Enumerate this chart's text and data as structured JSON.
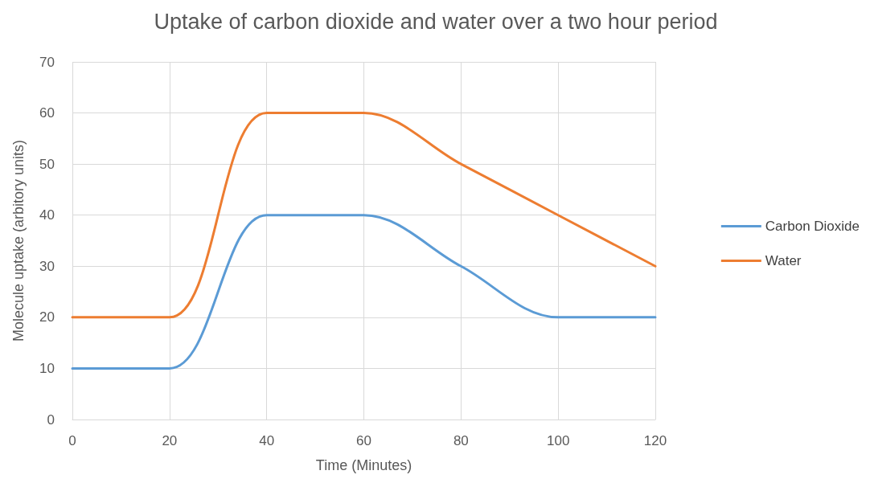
{
  "chart_data": {
    "type": "line",
    "title": "Uptake of carbon dioxide and water over a two hour period",
    "xlabel": "Time (Minutes)",
    "ylabel": "Molecule uptake (arbitory units)",
    "x": [
      0,
      20,
      40,
      60,
      80,
      100,
      120
    ],
    "series": [
      {
        "name": "Carbon Dioxide",
        "color": "#5b9bd5",
        "values": [
          10,
          10,
          40,
          40,
          30,
          20,
          20
        ]
      },
      {
        "name": "Water",
        "color": "#ed7d31",
        "values": [
          20,
          20,
          60,
          60,
          50,
          40,
          30
        ]
      }
    ],
    "xlim": [
      0,
      120
    ],
    "xticks": [
      0,
      20,
      40,
      60,
      80,
      100,
      120
    ],
    "ylim": [
      0,
      70
    ],
    "yticks": [
      0,
      10,
      20,
      30,
      40,
      50,
      60,
      70
    ],
    "grid": true,
    "legend": "right",
    "marker": "none",
    "line_style": "solid"
  }
}
